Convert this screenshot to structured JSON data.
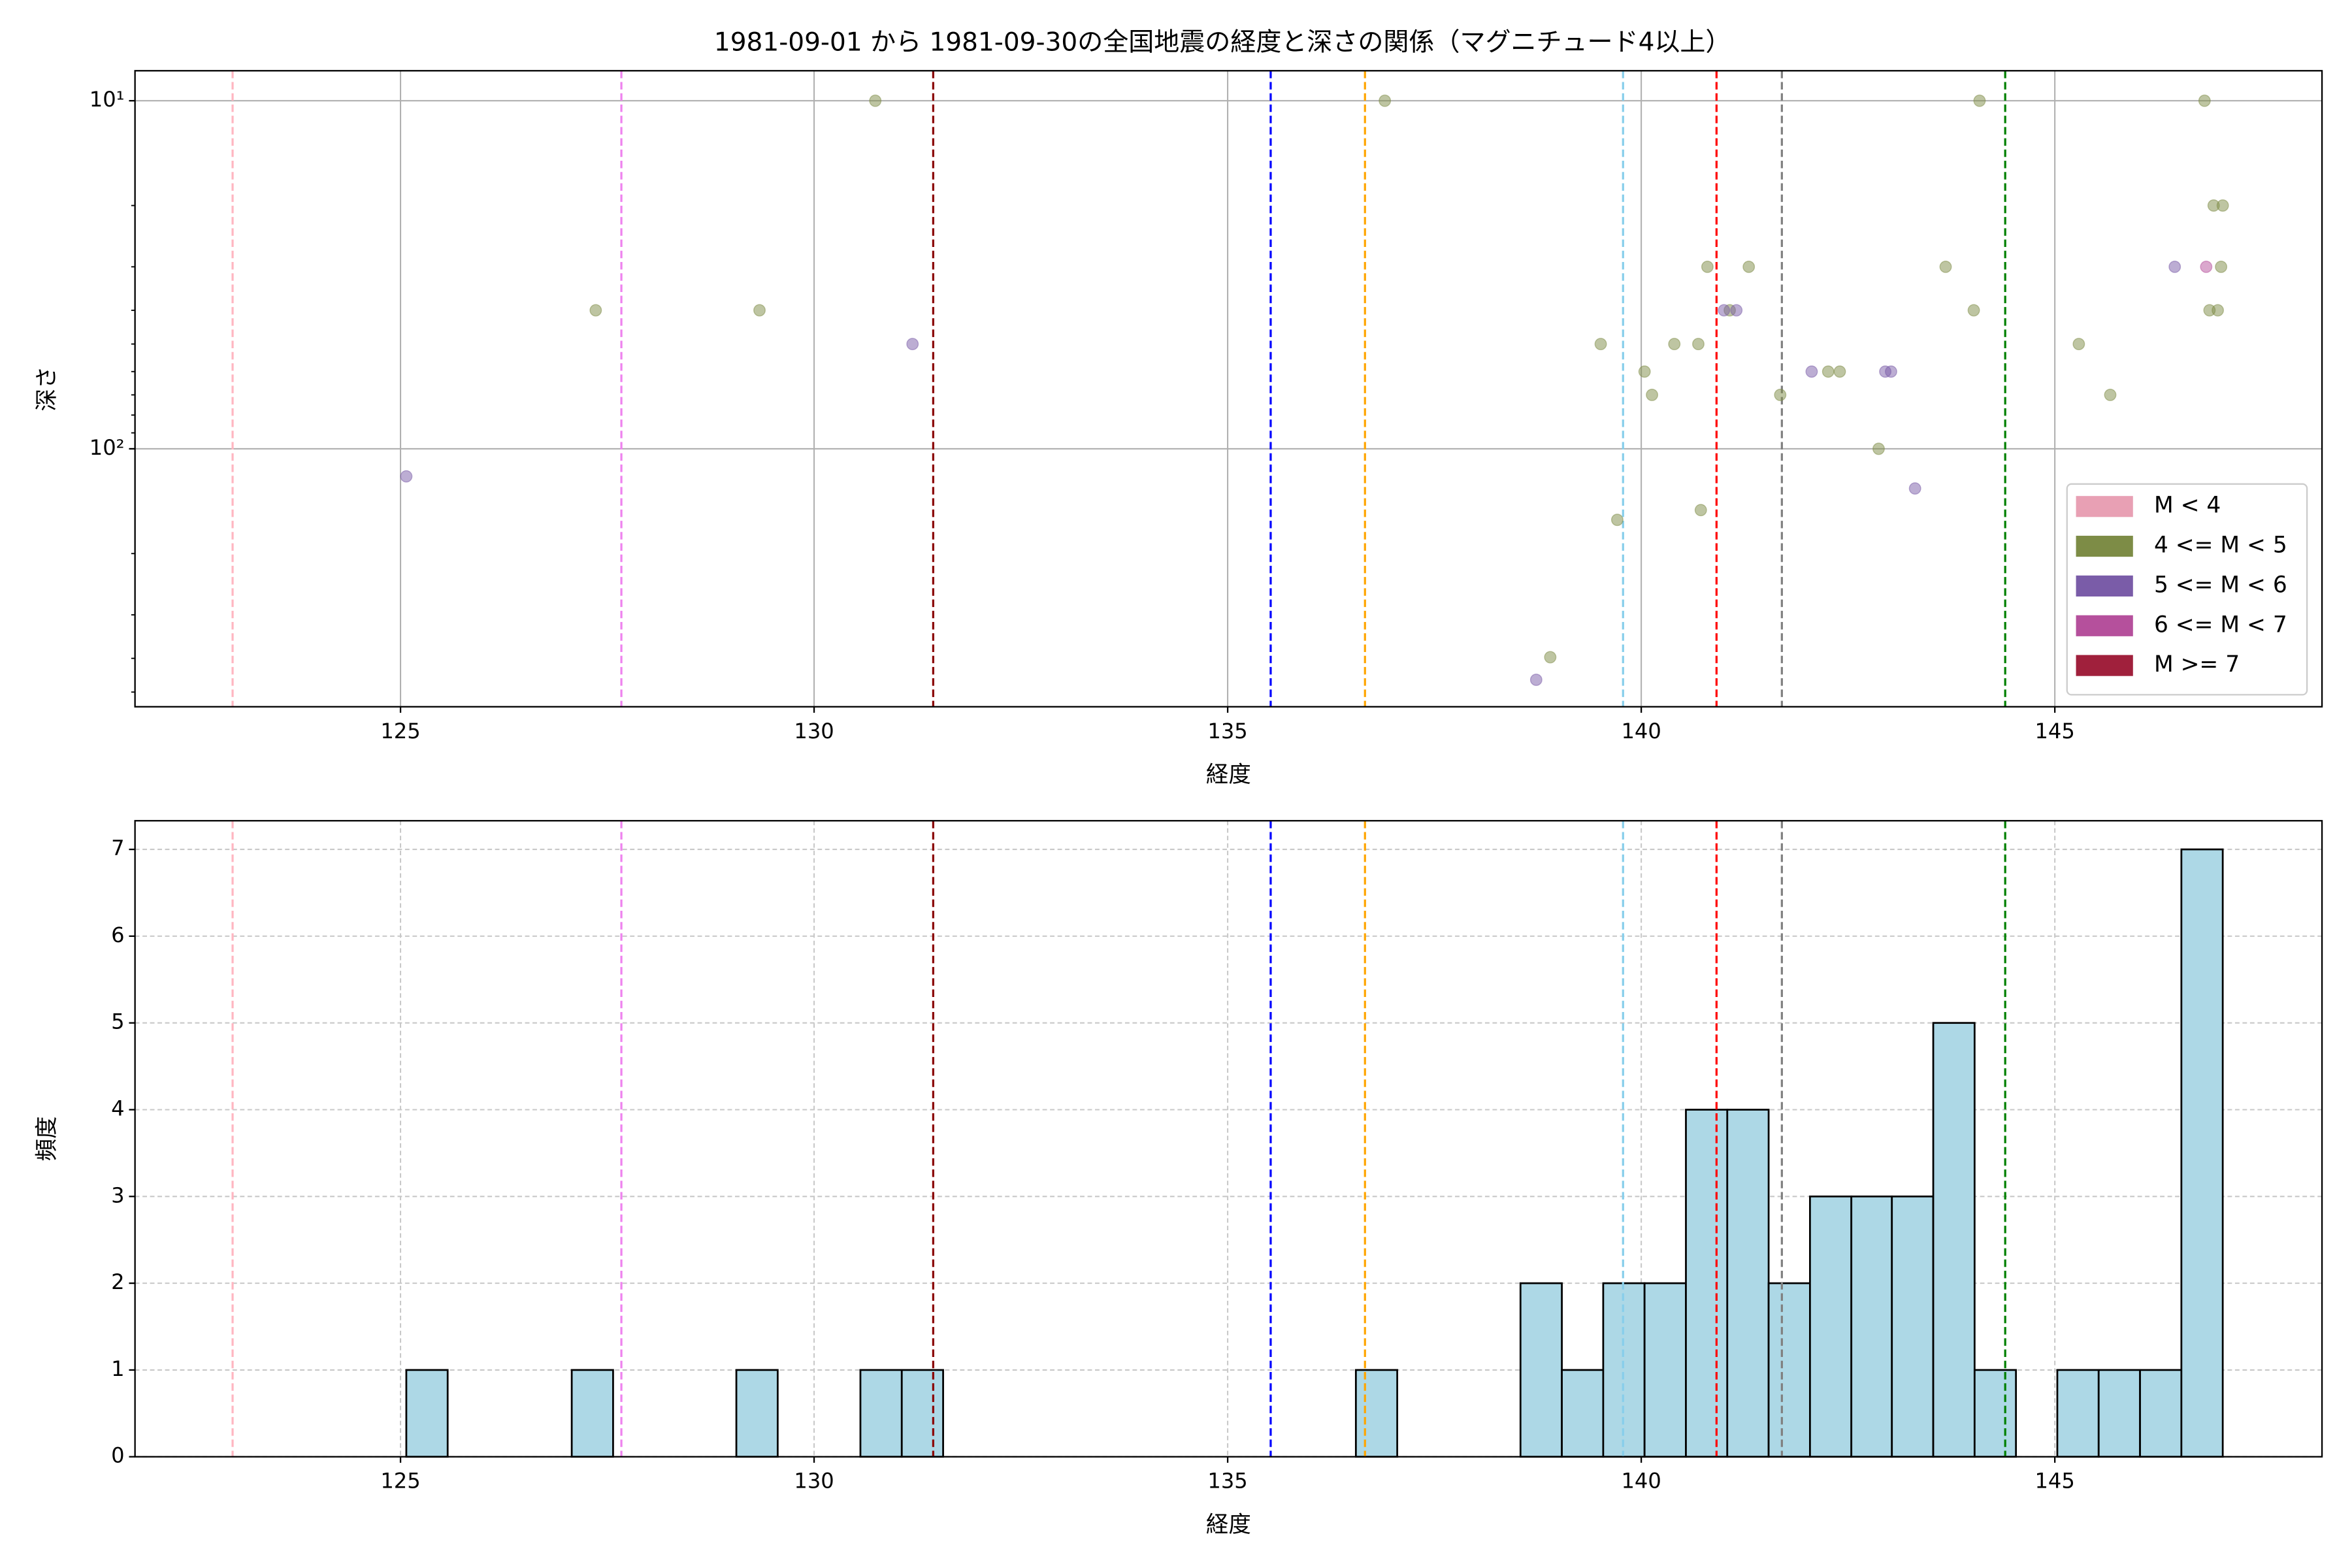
{
  "chart_data": [
    {
      "type": "scatter",
      "title": "1981-09-01 から 1981-09-30の全国地震の経度と深さの関係（マグニチュード4以上）",
      "xlabel": "経度",
      "ylabel": "深さ",
      "xlim": [
        121.79,
        148.23
      ],
      "xticks": [
        125,
        130,
        135,
        140,
        145
      ],
      "ylim": [
        8.2,
        551
      ],
      "log_scale_y": true,
      "y_inverted": true,
      "yticks": [
        {
          "value": 10,
          "label": "10¹"
        },
        {
          "value": 100,
          "label": "10²"
        }
      ],
      "y_minor_ticks": [
        20,
        30,
        40,
        50,
        60,
        70,
        80,
        90,
        200,
        300,
        400,
        500
      ],
      "grid": true,
      "legend": "lower right",
      "reference_lines": [
        {
          "x": 122.97,
          "color": "#ffb6c1"
        },
        {
          "x": 127.67,
          "color": "#ee82ee"
        },
        {
          "x": 131.44,
          "color": "#8b0000"
        },
        {
          "x": 135.52,
          "color": "#0000ff"
        },
        {
          "x": 136.66,
          "color": "#ffa500"
        },
        {
          "x": 139.78,
          "color": "#87ceeb"
        },
        {
          "x": 140.91,
          "color": "#ff0000"
        },
        {
          "x": 141.7,
          "color": "#808080"
        },
        {
          "x": 144.4,
          "color": "#008000"
        }
      ],
      "series": [
        {
          "name": "M < 4",
          "color": "#e8a0b4",
          "x": [],
          "values": []
        },
        {
          "name": "4 <= M < 5",
          "color": "#7d8c46",
          "x": [
            127.36,
            129.34,
            130.74,
            136.9,
            138.9,
            139.51,
            139.71,
            140.04,
            140.13,
            140.4,
            140.69,
            140.72,
            140.8,
            141.07,
            141.3,
            141.68,
            142.26,
            142.4,
            142.87,
            143.68,
            144.02,
            144.09,
            145.29,
            145.67,
            146.81,
            146.87,
            146.92,
            146.97,
            147.01,
            147.03
          ],
          "values": [
            40,
            40,
            10,
            10,
            397,
            50,
            160,
            60,
            70,
            50,
            50,
            150,
            30,
            40,
            30,
            70,
            60,
            60,
            100,
            30,
            40,
            10,
            50,
            70,
            10,
            40,
            20,
            40,
            30,
            20
          ]
        },
        {
          "name": "5 <= M < 6",
          "color": "#7a5ca8",
          "x": [
            125.07,
            131.19,
            138.73,
            141.0,
            141.15,
            142.06,
            142.95,
            143.02,
            143.31,
            146.45
          ],
          "values": [
            120,
            50,
            461,
            40,
            40,
            60,
            60,
            60,
            130,
            30
          ]
        },
        {
          "name": "6 <= M < 7",
          "color": "#b5509c",
          "x": [
            146.83
          ],
          "values": [
            30
          ]
        },
        {
          "name": "M >= 7",
          "color": "#a0203c",
          "x": [],
          "values": []
        }
      ]
    },
    {
      "type": "histogram",
      "xlabel": "経度",
      "ylabel": "頻度",
      "xlim": [
        121.79,
        148.23
      ],
      "xticks": [
        125,
        130,
        135,
        140,
        145
      ],
      "ylim": [
        0,
        7.33
      ],
      "yticks": [
        0,
        1,
        2,
        3,
        4,
        5,
        6,
        7
      ],
      "grid": true,
      "color": "#add8e6",
      "edgecolor": "#000000",
      "bins": [
        125.07,
        125.57,
        126.07,
        126.57,
        127.07,
        127.57,
        128.06,
        128.56,
        129.06,
        129.56,
        130.06,
        130.56,
        131.06,
        131.56,
        132.06,
        132.56,
        133.05,
        133.55,
        134.05,
        134.55,
        135.05,
        135.55,
        136.05,
        136.55,
        137.05,
        137.55,
        138.04,
        138.54,
        139.04,
        139.54,
        140.04,
        140.54,
        141.04,
        141.54,
        142.04,
        142.54,
        143.03,
        143.53,
        144.03,
        144.53,
        145.03,
        145.53,
        146.03,
        146.53,
        147.03
      ],
      "counts": [
        1,
        0,
        0,
        0,
        1,
        0,
        0,
        0,
        1,
        0,
        0,
        1,
        1,
        0,
        0,
        0,
        0,
        0,
        0,
        0,
        0,
        0,
        0,
        1,
        0,
        0,
        0,
        2,
        1,
        2,
        2,
        4,
        4,
        2,
        3,
        3,
        3,
        5,
        1,
        0,
        1,
        1,
        1,
        7
      ],
      "reference_lines": [
        {
          "x": 122.97,
          "color": "#ffb6c1"
        },
        {
          "x": 127.67,
          "color": "#ee82ee"
        },
        {
          "x": 131.44,
          "color": "#8b0000"
        },
        {
          "x": 135.52,
          "color": "#0000ff"
        },
        {
          "x": 136.66,
          "color": "#ffa500"
        },
        {
          "x": 139.78,
          "color": "#87ceeb"
        },
        {
          "x": 140.91,
          "color": "#ff0000"
        },
        {
          "x": 141.7,
          "color": "#808080"
        },
        {
          "x": 144.4,
          "color": "#008000"
        }
      ]
    }
  ]
}
